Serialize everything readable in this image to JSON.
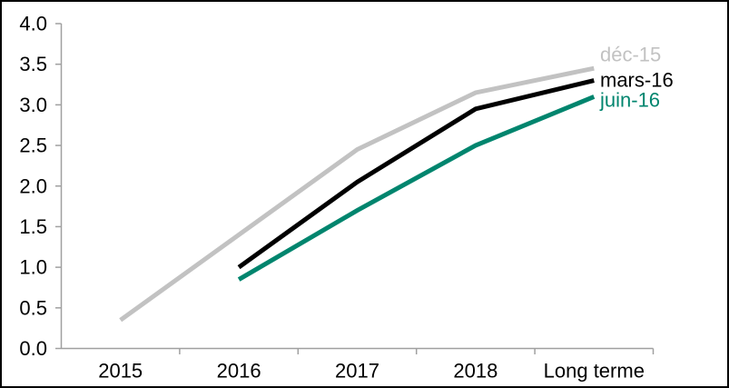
{
  "window": {
    "background_color": "#FFFFFF",
    "frame_border_color": "#000000"
  },
  "chart_data": {
    "type": "line",
    "title": "",
    "xlabel": "",
    "ylabel": "",
    "categories": [
      "2015",
      "2016",
      "2017",
      "2018",
      "Long terme"
    ],
    "series": [
      {
        "name": "déc-15",
        "color": "#C2C2C2",
        "values": [
          0.35,
          1.4,
          2.45,
          3.15,
          3.45
        ]
      },
      {
        "name": "mars-16",
        "color": "#000000",
        "values": [
          null,
          1.0,
          2.05,
          2.95,
          3.3
        ]
      },
      {
        "name": "juin-16",
        "color": "#00856E",
        "values": [
          null,
          0.85,
          1.7,
          2.5,
          3.1
        ]
      }
    ],
    "ylim": [
      0,
      4
    ],
    "ytick_step": 0.5,
    "ytick_labels": [
      "0.0",
      "0.5",
      "1.0",
      "1.5",
      "2.0",
      "2.5",
      "3.0",
      "3.5",
      "4.0"
    ],
    "grid": false,
    "legend_position": "right of line ends, stacked: déc-15 above, mars-16 middle, juin-16 below",
    "axis_color": "#A0A0A0",
    "tick_label_color": "#000000"
  }
}
